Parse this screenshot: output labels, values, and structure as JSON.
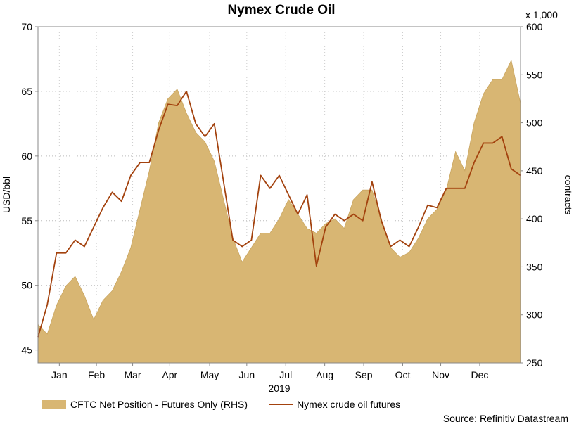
{
  "chart_data": {
    "type": "line",
    "title": "Nymex Crude Oil",
    "xlabel": "2019",
    "ylabel": "USD/bbl",
    "y2label": "contracts",
    "y2_multiplier_label": "x 1,000",
    "source": "Source: Refinitiv Datastream",
    "x": [
      0,
      1,
      2,
      3,
      4,
      5,
      6,
      7,
      8,
      9,
      10,
      11,
      12,
      13,
      14,
      15,
      16,
      17,
      18,
      19,
      20,
      21,
      22,
      23,
      24,
      25,
      26,
      27,
      28,
      29,
      30,
      31,
      32,
      33,
      34,
      35,
      36,
      37,
      38,
      39,
      40,
      41,
      42,
      43,
      44,
      45,
      46,
      47,
      48,
      49,
      50,
      51,
      52
    ],
    "xlim": [
      0,
      52
    ],
    "xticks": [
      {
        "value": 2.3,
        "label": "Jan"
      },
      {
        "value": 6.3,
        "label": "Feb"
      },
      {
        "value": 10.2,
        "label": "Mar"
      },
      {
        "value": 14.2,
        "label": "Apr"
      },
      {
        "value": 18.5,
        "label": "May"
      },
      {
        "value": 22.5,
        "label": "Jun"
      },
      {
        "value": 26.7,
        "label": "Jul"
      },
      {
        "value": 30.9,
        "label": "Aug"
      },
      {
        "value": 35.1,
        "label": "Sep"
      },
      {
        "value": 39.3,
        "label": "Oct"
      },
      {
        "value": 43.4,
        "label": "Nov"
      },
      {
        "value": 47.6,
        "label": "Dec"
      }
    ],
    "ylim": [
      44,
      70
    ],
    "yticks": [
      45,
      50,
      55,
      60,
      65,
      70
    ],
    "y2lim": [
      250,
      600
    ],
    "y2ticks": [
      250,
      300,
      350,
      400,
      450,
      500,
      550,
      600
    ],
    "grid": true,
    "legend": "bottom",
    "series": [
      {
        "name": "CFTC Net Position - Futures Only (RHS)",
        "color": "#d8b673",
        "axis": "y2",
        "kind": "area",
        "values": [
          290,
          280,
          310,
          330,
          340,
          320,
          295,
          315,
          325,
          345,
          370,
          410,
          450,
          500,
          525,
          535,
          510,
          490,
          480,
          460,
          420,
          380,
          355,
          370,
          385,
          385,
          400,
          420,
          405,
          390,
          385,
          395,
          400,
          390,
          420,
          430,
          430,
          400,
          370,
          360,
          365,
          380,
          400,
          410,
          430,
          470,
          450,
          500,
          530,
          545,
          545,
          565,
          520
        ]
      },
      {
        "name": "Nymex crude oil futures",
        "color": "#a3420e",
        "axis": "y",
        "kind": "line",
        "values": [
          46,
          48.5,
          52.5,
          52.5,
          53.5,
          53,
          54.5,
          56,
          57.2,
          56.5,
          58.5,
          59.5,
          59.5,
          62,
          64,
          63.9,
          65,
          62.5,
          61.5,
          62.5,
          58,
          53.5,
          53,
          53.5,
          58.5,
          57.5,
          58.5,
          57,
          55.5,
          57,
          51.5,
          54.5,
          55.5,
          55,
          55.5,
          55,
          58,
          55,
          53,
          53.5,
          53,
          54.5,
          56.2,
          56,
          57.5,
          57.5,
          57.5,
          59.5,
          61,
          61,
          61.5,
          59,
          58.5
        ]
      }
    ]
  }
}
